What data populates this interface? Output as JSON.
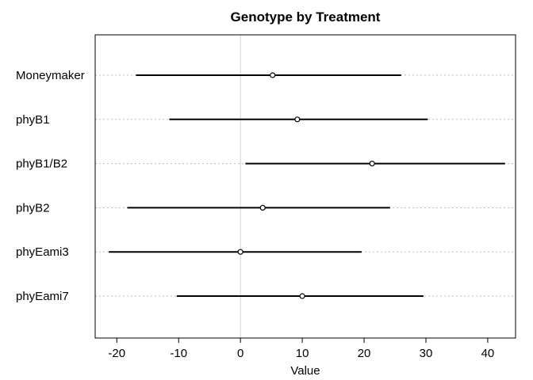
{
  "chart_data": {
    "type": "dot-interval",
    "title": "Genotype by Treatment",
    "xlabel": "Value",
    "ylabel": "",
    "xlim": [
      -23.5,
      44.5
    ],
    "xticks": [
      -20,
      -10,
      0,
      10,
      20,
      30,
      40
    ],
    "xtick_labels": [
      "-20",
      "-10",
      "0",
      "10",
      "20",
      "30",
      "40"
    ],
    "reference_line_x": 0,
    "grid": "horizontal dotted guides per category",
    "categories": [
      "Moneymaker",
      "phyB1",
      "phyB1/B2",
      "phyB2",
      "phyEami3",
      "phyEami7"
    ],
    "estimates": [
      5.2,
      9.2,
      21.3,
      3.6,
      0.0,
      10.0
    ],
    "lower": [
      -16.9,
      -11.5,
      0.8,
      -18.3,
      -21.3,
      -10.3
    ],
    "upper": [
      26.0,
      30.3,
      42.8,
      24.2,
      19.6,
      29.6
    ],
    "colors": {
      "interval": "#000000",
      "point": "#000000",
      "guide": "#bdbdbd",
      "reference_line": "#d4d4d4",
      "frame": "#000000"
    }
  }
}
